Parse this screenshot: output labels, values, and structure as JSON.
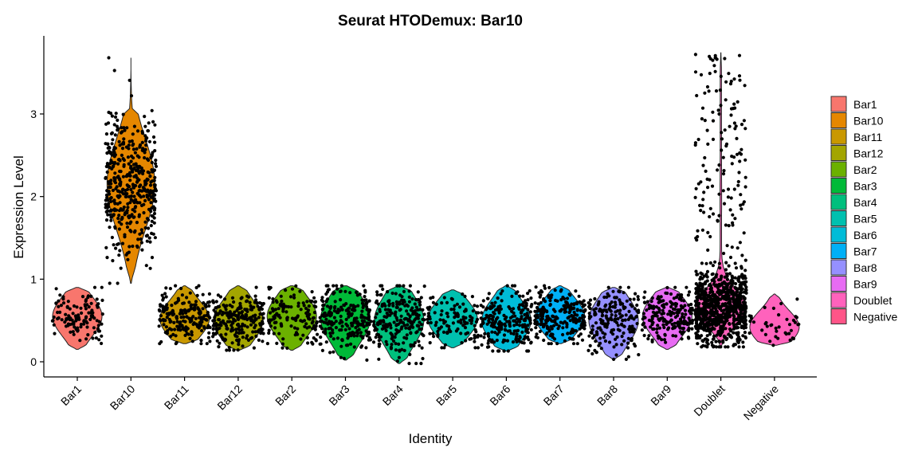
{
  "chart_data": {
    "type": "violin",
    "title": "Seurat HTODemux: Bar10",
    "xlabel": "Identity",
    "ylabel": "Expression Level",
    "ylim": [
      -0.2,
      3.8
    ],
    "yticks": [
      0,
      1,
      2,
      3
    ],
    "categories": [
      "Bar1",
      "Bar10",
      "Bar11",
      "Bar12",
      "Bar2",
      "Bar3",
      "Bar4",
      "Bar5",
      "Bar6",
      "Bar7",
      "Bar8",
      "Bar9",
      "Doublet",
      "Negative"
    ],
    "colors": [
      "#F8766D",
      "#E58700",
      "#C99800",
      "#A3A500",
      "#6BB100",
      "#00BA38",
      "#00BF7D",
      "#00C0AF",
      "#00BCD8",
      "#00B0F6",
      "#9590FF",
      "#E76BF3",
      "#FF62BC",
      "#FF62BC"
    ],
    "legend_colors": [
      "#F8766D",
      "#E58700",
      "#C99800",
      "#A3A500",
      "#6BB100",
      "#00BA38",
      "#00BF7D",
      "#00C0AF",
      "#00BCD8",
      "#00B0F6",
      "#9590FF",
      "#E76BF3",
      "#FF62BC",
      "#FF5588"
    ],
    "legend_position": "right",
    "grid": false,
    "series": [
      {
        "name": "Bar1",
        "min": 0.15,
        "max": 0.9,
        "center": 0.55,
        "n": 120
      },
      {
        "name": "Bar10",
        "min": 0.95,
        "max": 3.68,
        "center": 2.15,
        "n": 460
      },
      {
        "name": "Bar11",
        "min": 0.22,
        "max": 0.92,
        "center": 0.52,
        "n": 200
      },
      {
        "name": "Bar12",
        "min": 0.14,
        "max": 0.92,
        "center": 0.5,
        "n": 230
      },
      {
        "name": "Bar2",
        "min": 0.14,
        "max": 0.92,
        "center": 0.55,
        "n": 140
      },
      {
        "name": "Bar3",
        "min": 0.02,
        "max": 0.92,
        "center": 0.52,
        "n": 230
      },
      {
        "name": "Bar4",
        "min": -0.02,
        "max": 0.92,
        "center": 0.5,
        "n": 230
      },
      {
        "name": "Bar5",
        "min": 0.17,
        "max": 0.87,
        "center": 0.52,
        "n": 120
      },
      {
        "name": "Bar6",
        "min": 0.13,
        "max": 0.92,
        "center": 0.5,
        "n": 230
      },
      {
        "name": "Bar7",
        "min": 0.22,
        "max": 0.92,
        "center": 0.55,
        "n": 230
      },
      {
        "name": "Bar8",
        "min": 0.03,
        "max": 0.9,
        "center": 0.5,
        "n": 200
      },
      {
        "name": "Bar9",
        "min": 0.15,
        "max": 0.9,
        "center": 0.55,
        "n": 200
      },
      {
        "name": "Doublet",
        "min": 0.18,
        "max": 3.74,
        "center": 0.65,
        "n": 900
      },
      {
        "name": "Negative",
        "min": 0.2,
        "max": 0.82,
        "center": 0.42,
        "n": 40
      }
    ]
  }
}
